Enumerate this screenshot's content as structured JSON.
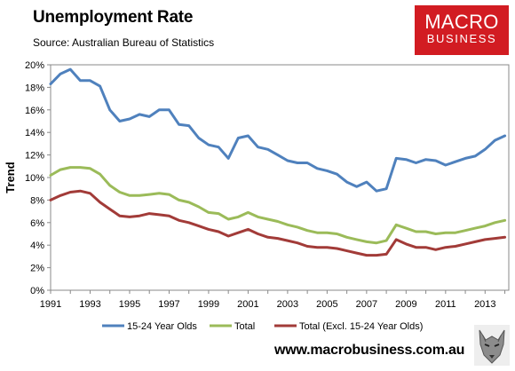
{
  "header": {
    "title": "Unemployment Rate",
    "source": "Source: Australian Bureau of Statistics"
  },
  "logo": {
    "line1": "MACRO",
    "line2": "BUSINESS"
  },
  "footer": {
    "url": "www.macrobusiness.com.au",
    "icon": "wolf-icon"
  },
  "colors": {
    "blue": "#4f81bd",
    "green": "#9bbb59",
    "red": "#a23b38",
    "logo_bg": "#d21c22"
  },
  "chart_data": {
    "type": "line",
    "title": "Unemployment Rate",
    "subtitle": "Source: Australian Bureau of Statistics",
    "xlabel": "",
    "ylabel": "Trend",
    "xlim": [
      1991,
      2014.2
    ],
    "ylim": [
      0,
      20
    ],
    "y_ticks": [
      "0%",
      "2%",
      "4%",
      "6%",
      "8%",
      "10%",
      "12%",
      "14%",
      "16%",
      "18%",
      "20%"
    ],
    "x_ticks": [
      "1991",
      "1993",
      "1995",
      "1997",
      "1999",
      "2001",
      "2003",
      "2005",
      "2007",
      "2009",
      "2011",
      "2013"
    ],
    "grid": false,
    "legend_position": "bottom",
    "series": [
      {
        "name": "15-24 Year Olds",
        "color": "#4f81bd",
        "x": [
          1991.0,
          1991.5,
          1992.0,
          1992.5,
          1993.0,
          1993.5,
          1994.0,
          1994.5,
          1995.0,
          1995.5,
          1996.0,
          1996.5,
          1997.0,
          1997.5,
          1998.0,
          1998.5,
          1999.0,
          1999.5,
          2000.0,
          2000.5,
          2001.0,
          2001.5,
          2002.0,
          2002.5,
          2003.0,
          2003.5,
          2004.0,
          2004.5,
          2005.0,
          2005.5,
          2006.0,
          2006.5,
          2007.0,
          2007.5,
          2008.0,
          2008.5,
          2009.0,
          2009.5,
          2010.0,
          2010.5,
          2011.0,
          2011.5,
          2012.0,
          2012.5,
          2013.0,
          2013.5,
          2014.0
        ],
        "y": [
          18.3,
          19.2,
          19.6,
          18.6,
          18.6,
          18.1,
          16.0,
          15.0,
          15.2,
          15.6,
          15.4,
          16.0,
          16.0,
          14.7,
          14.6,
          13.5,
          12.9,
          12.7,
          11.7,
          13.5,
          13.7,
          12.7,
          12.5,
          12.0,
          11.5,
          11.3,
          11.3,
          10.8,
          10.6,
          10.3,
          9.6,
          9.2,
          9.6,
          8.8,
          9.0,
          11.7,
          11.6,
          11.3,
          11.6,
          11.5,
          11.1,
          11.4,
          11.7,
          11.9,
          12.5,
          13.3,
          13.7
        ]
      },
      {
        "name": "Total",
        "color": "#9bbb59",
        "x": [
          1991.0,
          1991.5,
          1992.0,
          1992.5,
          1993.0,
          1993.5,
          1994.0,
          1994.5,
          1995.0,
          1995.5,
          1996.0,
          1996.5,
          1997.0,
          1997.5,
          1998.0,
          1998.5,
          1999.0,
          1999.5,
          2000.0,
          2000.5,
          2001.0,
          2001.5,
          2002.0,
          2002.5,
          2003.0,
          2003.5,
          2004.0,
          2004.5,
          2005.0,
          2005.5,
          2006.0,
          2006.5,
          2007.0,
          2007.5,
          2008.0,
          2008.5,
          2009.0,
          2009.5,
          2010.0,
          2010.5,
          2011.0,
          2011.5,
          2012.0,
          2012.5,
          2013.0,
          2013.5,
          2014.0
        ],
        "y": [
          10.2,
          10.7,
          10.9,
          10.9,
          10.8,
          10.3,
          9.3,
          8.7,
          8.4,
          8.4,
          8.5,
          8.6,
          8.5,
          8.0,
          7.8,
          7.4,
          6.9,
          6.8,
          6.3,
          6.5,
          6.9,
          6.5,
          6.3,
          6.1,
          5.8,
          5.6,
          5.3,
          5.1,
          5.1,
          5.0,
          4.7,
          4.5,
          4.3,
          4.2,
          4.4,
          5.8,
          5.5,
          5.2,
          5.2,
          5.0,
          5.1,
          5.1,
          5.3,
          5.5,
          5.7,
          6.0,
          6.2
        ]
      },
      {
        "name": "Total (Excl. 15-24 Year Olds)",
        "color": "#a23b38",
        "x": [
          1991.0,
          1991.5,
          1992.0,
          1992.5,
          1993.0,
          1993.5,
          1994.0,
          1994.5,
          1995.0,
          1995.5,
          1996.0,
          1996.5,
          1997.0,
          1997.5,
          1998.0,
          1998.5,
          1999.0,
          1999.5,
          2000.0,
          2000.5,
          2001.0,
          2001.5,
          2002.0,
          2002.5,
          2003.0,
          2003.5,
          2004.0,
          2004.5,
          2005.0,
          2005.5,
          2006.0,
          2006.5,
          2007.0,
          2007.5,
          2008.0,
          2008.5,
          2009.0,
          2009.5,
          2010.0,
          2010.5,
          2011.0,
          2011.5,
          2012.0,
          2012.5,
          2013.0,
          2013.5,
          2014.0
        ],
        "y": [
          8.0,
          8.4,
          8.7,
          8.8,
          8.6,
          7.8,
          7.2,
          6.6,
          6.5,
          6.6,
          6.8,
          6.7,
          6.6,
          6.2,
          6.0,
          5.7,
          5.4,
          5.2,
          4.8,
          5.1,
          5.4,
          5.0,
          4.7,
          4.6,
          4.4,
          4.2,
          3.9,
          3.8,
          3.8,
          3.7,
          3.5,
          3.3,
          3.1,
          3.1,
          3.2,
          4.5,
          4.1,
          3.8,
          3.8,
          3.6,
          3.8,
          3.9,
          4.1,
          4.3,
          4.5,
          4.6,
          4.7
        ]
      }
    ]
  }
}
